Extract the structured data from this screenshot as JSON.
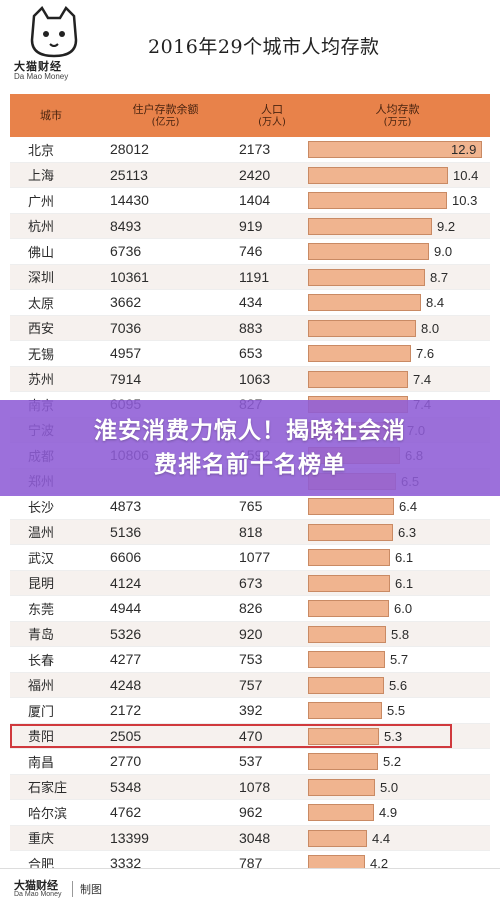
{
  "brand": {
    "name": "大猫财经",
    "sub": "Da Mao Money",
    "footer_tag": "制图"
  },
  "chart_data": {
    "type": "table",
    "title": "2016年29个城市人均存款",
    "columns": [
      {
        "main": "城市",
        "unit": ""
      },
      {
        "main": "住户存款余额",
        "unit": "(亿元)"
      },
      {
        "main": "人口",
        "unit": "(万人)"
      },
      {
        "main": "人均存款",
        "unit": "(万元)"
      }
    ],
    "per_capita_max": 12.9,
    "highlight_city": "贵阳",
    "rows": [
      {
        "city": "北京",
        "deposits": "28012",
        "population": "2173",
        "per_capita": 12.9
      },
      {
        "city": "上海",
        "deposits": "25113",
        "population": "2420",
        "per_capita": 10.4
      },
      {
        "city": "广州",
        "deposits": "14430",
        "population": "1404",
        "per_capita": 10.3
      },
      {
        "city": "杭州",
        "deposits": "8493",
        "population": "919",
        "per_capita": 9.2
      },
      {
        "city": "佛山",
        "deposits": "6736",
        "population": "746",
        "per_capita": 9.0
      },
      {
        "city": "深圳",
        "deposits": "10361",
        "population": "1191",
        "per_capita": 8.7
      },
      {
        "city": "太原",
        "deposits": "3662",
        "population": "434",
        "per_capita": 8.4
      },
      {
        "city": "西安",
        "deposits": "7036",
        "population": "883",
        "per_capita": 8.0
      },
      {
        "city": "无锡",
        "deposits": "4957",
        "population": "653",
        "per_capita": 7.6
      },
      {
        "city": "苏州",
        "deposits": "7914",
        "population": "1063",
        "per_capita": 7.4
      },
      {
        "city": "南京",
        "deposits": "6095",
        "population": "827",
        "per_capita": 7.4
      },
      {
        "city": "宁波",
        "deposits": "",
        "population": "",
        "per_capita": 7.0
      },
      {
        "city": "成都",
        "deposits": "10806",
        "population": "1592",
        "per_capita": 6.8
      },
      {
        "city": "郑州",
        "deposits": "",
        "population": "",
        "per_capita": 6.5
      },
      {
        "city": "长沙",
        "deposits": "4873",
        "population": "765",
        "per_capita": 6.4
      },
      {
        "city": "温州",
        "deposits": "5136",
        "population": "818",
        "per_capita": 6.3
      },
      {
        "city": "武汉",
        "deposits": "6606",
        "population": "1077",
        "per_capita": 6.1
      },
      {
        "city": "昆明",
        "deposits": "4124",
        "population": "673",
        "per_capita": 6.1
      },
      {
        "city": "东莞",
        "deposits": "4944",
        "population": "826",
        "per_capita": 6.0
      },
      {
        "city": "青岛",
        "deposits": "5326",
        "population": "920",
        "per_capita": 5.8
      },
      {
        "city": "长春",
        "deposits": "4277",
        "population": "753",
        "per_capita": 5.7
      },
      {
        "city": "福州",
        "deposits": "4248",
        "population": "757",
        "per_capita": 5.6
      },
      {
        "city": "厦门",
        "deposits": "2172",
        "population": "392",
        "per_capita": 5.5
      },
      {
        "city": "贵阳",
        "deposits": "2505",
        "population": "470",
        "per_capita": 5.3
      },
      {
        "city": "南昌",
        "deposits": "2770",
        "population": "537",
        "per_capita": 5.2
      },
      {
        "city": "石家庄",
        "deposits": "5348",
        "population": "1078",
        "per_capita": 5.0
      },
      {
        "city": "哈尔滨",
        "deposits": "4762",
        "population": "962",
        "per_capita": 4.9
      },
      {
        "city": "重庆",
        "deposits": "13399",
        "population": "3048",
        "per_capita": 4.4
      },
      {
        "city": "合肥",
        "deposits": "3332",
        "population": "787",
        "per_capita": 4.2
      }
    ]
  },
  "banner": {
    "line1": "淮安消费力惊人！揭晓社会消",
    "line2": "费排名前十名榜单"
  },
  "colors": {
    "header": "#e8824a",
    "bar": "#f0b48f",
    "highlight": "#d0393d",
    "banner": "#8e5cd6"
  }
}
